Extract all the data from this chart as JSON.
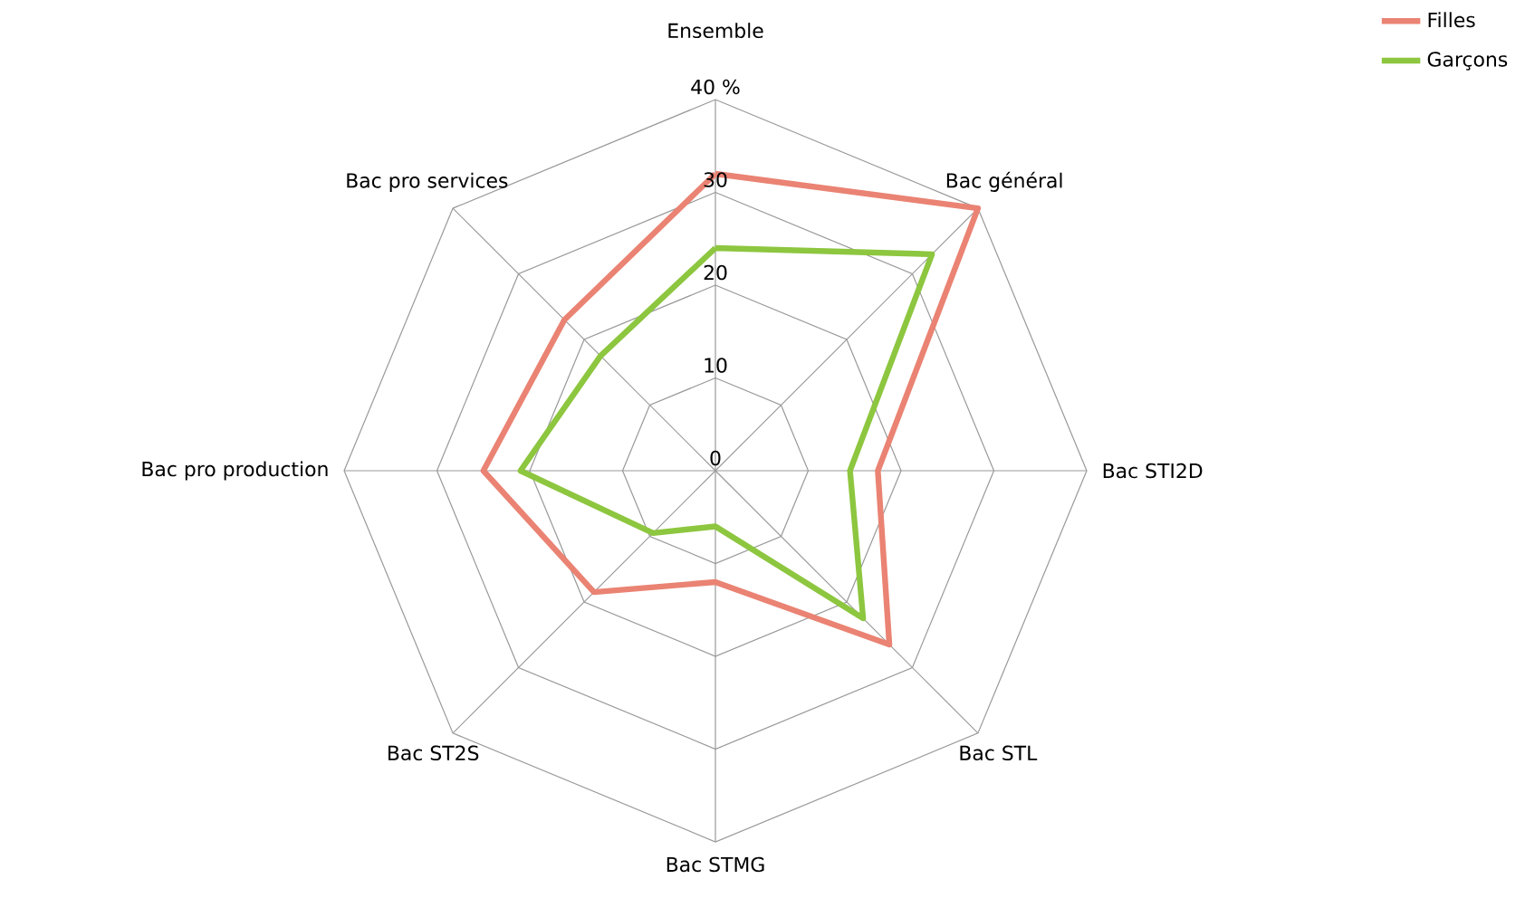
{
  "chart_data": {
    "type": "radar",
    "categories": [
      "Ensemble",
      "Bac général",
      "Bac STI2D",
      "Bac STL",
      "Bac STMG",
      "Bac ST2S",
      "Bac pro production",
      "Bac pro services"
    ],
    "series": [
      {
        "name": "Filles",
        "color": "#ea8373",
        "values": [
          32,
          40,
          17.5,
          26.5,
          12,
          18.5,
          25,
          23
        ]
      },
      {
        "name": "Garçons",
        "color": "#8dc63f",
        "values": [
          24,
          33,
          14.5,
          22.5,
          6,
          9.5,
          21,
          17.5
        ]
      }
    ],
    "ylim": [
      0,
      40
    ],
    "yticks": [
      0,
      10,
      20,
      30,
      {
        "value": 40,
        "label": "40 %"
      }
    ],
    "grid": true,
    "legend": "top right",
    "marker": "none",
    "line_style": "solid"
  }
}
